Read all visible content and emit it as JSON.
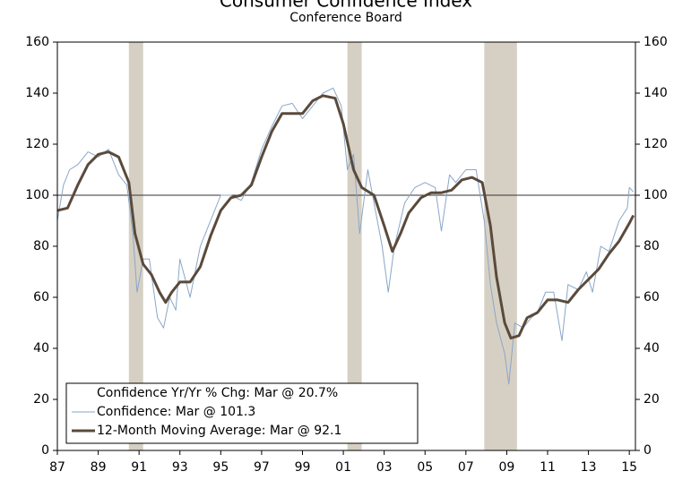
{
  "chart_data": {
    "type": "line",
    "title": "Consumer Confidence Index",
    "subtitle": "Conference Board",
    "legend_note": "Confidence Yr/Yr % Chg: Mar @ 20.7%",
    "legend": "lower left",
    "xlim": [
      1987,
      2015.3
    ],
    "xticks": [
      {
        "value": 1987,
        "label": "87"
      },
      {
        "value": 1989,
        "label": "89"
      },
      {
        "value": 1991,
        "label": "91"
      },
      {
        "value": 1993,
        "label": "93"
      },
      {
        "value": 1995,
        "label": "95"
      },
      {
        "value": 1997,
        "label": "97"
      },
      {
        "value": 1999,
        "label": "99"
      },
      {
        "value": 2001,
        "label": "01"
      },
      {
        "value": 2003,
        "label": "03"
      },
      {
        "value": 2005,
        "label": "05"
      },
      {
        "value": 2007,
        "label": "07"
      },
      {
        "value": 2009,
        "label": "09"
      },
      {
        "value": 2011,
        "label": "11"
      },
      {
        "value": 2013,
        "label": "13"
      },
      {
        "value": 2015,
        "label": "15"
      }
    ],
    "ylim": [
      0,
      160
    ],
    "yticks": [
      0,
      20,
      40,
      60,
      80,
      100,
      120,
      140,
      160
    ],
    "y2lim": [
      0,
      160
    ],
    "y2ticks": [
      0,
      20,
      40,
      60,
      80,
      100,
      120,
      140,
      160
    ],
    "reference_line": 100,
    "recessions": [
      [
        1990.5,
        1991.2
      ],
      [
        2001.2,
        2001.9
      ],
      [
        2007.9,
        2009.5
      ]
    ],
    "recession_color": "#d6d0c4",
    "series": [
      {
        "name": "Confidence: Mar @ 101.3",
        "color": "#8aa6c8",
        "width": 1,
        "x": [
          1987.0,
          1987.3,
          1987.6,
          1988.0,
          1988.5,
          1989.0,
          1989.5,
          1990.0,
          1990.4,
          1990.7,
          1990.9,
          1991.2,
          1991.5,
          1991.9,
          1992.2,
          1992.5,
          1992.8,
          1993.0,
          1993.5,
          1994.0,
          1994.5,
          1995.0,
          1995.5,
          1996.0,
          1996.5,
          1997.0,
          1997.5,
          1998.0,
          1998.5,
          1999.0,
          1999.5,
          2000.0,
          2000.5,
          2000.9,
          2001.2,
          2001.5,
          2001.8,
          2002.2,
          2002.5,
          2002.9,
          2003.2,
          2003.5,
          2004.0,
          2004.5,
          2005.0,
          2005.5,
          2005.8,
          2006.2,
          2006.5,
          2007.0,
          2007.5,
          2007.9,
          2008.2,
          2008.5,
          2008.9,
          2009.1,
          2009.4,
          2009.8,
          2010.2,
          2010.5,
          2010.9,
          2011.3,
          2011.7,
          2012.0,
          2012.5,
          2012.9,
          2013.2,
          2013.6,
          2014.0,
          2014.5,
          2014.9,
          2015.0,
          2015.2
        ],
        "values": [
          90,
          104,
          110,
          112,
          117,
          115,
          118,
          108,
          104,
          85,
          62,
          75,
          75,
          52,
          48,
          60,
          55,
          75,
          60,
          80,
          90,
          100,
          100,
          98,
          105,
          118,
          127,
          135,
          136,
          130,
          135,
          140,
          142,
          135,
          110,
          116,
          85,
          110,
          97,
          80,
          62,
          80,
          97,
          103,
          105,
          103,
          86,
          108,
          105,
          110,
          110,
          90,
          65,
          50,
          38,
          26,
          50,
          48,
          52,
          54,
          62,
          62,
          43,
          65,
          63,
          70,
          62,
          80,
          78,
          90,
          95,
          103,
          101.3
        ]
      },
      {
        "name": "12-Month Moving Average: Mar @ 92.1",
        "color": "#5a4a3c",
        "width": 3,
        "x": [
          1987.0,
          1987.5,
          1988.0,
          1988.5,
          1989.0,
          1989.5,
          1990.0,
          1990.5,
          1990.8,
          1991.2,
          1991.6,
          1992.0,
          1992.3,
          1992.6,
          1993.0,
          1993.5,
          1994.0,
          1994.5,
          1995.0,
          1995.5,
          1996.0,
          1996.5,
          1997.0,
          1997.5,
          1998.0,
          1998.5,
          1999.0,
          1999.5,
          2000.0,
          2000.6,
          2001.0,
          2001.5,
          2001.9,
          2002.5,
          2003.0,
          2003.4,
          2003.8,
          2004.2,
          2004.8,
          2005.3,
          2005.8,
          2006.3,
          2006.8,
          2007.3,
          2007.8,
          2008.2,
          2008.5,
          2008.9,
          2009.2,
          2009.6,
          2010.0,
          2010.5,
          2011.0,
          2011.5,
          2012.0,
          2012.5,
          2013.0,
          2013.5,
          2014.0,
          2014.5,
          2015.0,
          2015.2
        ],
        "values": [
          94,
          95,
          104,
          112,
          116,
          117,
          115,
          105,
          85,
          73,
          69,
          62,
          58,
          62,
          66,
          66,
          72,
          84,
          94,
          99,
          100,
          104,
          115,
          125,
          132,
          132,
          132,
          137,
          139,
          138,
          128,
          110,
          103,
          100,
          88,
          78,
          85,
          93,
          99,
          101,
          101,
          102,
          106,
          107,
          105,
          88,
          68,
          50,
          44,
          45,
          52,
          54,
          59,
          59,
          58,
          63,
          67,
          71,
          77,
          82,
          89,
          92.1
        ]
      }
    ]
  }
}
